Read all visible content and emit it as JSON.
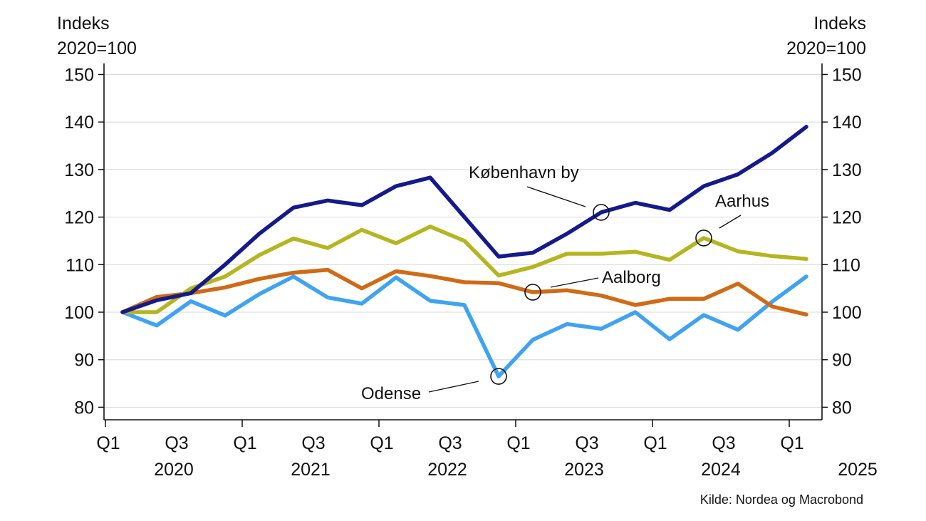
{
  "chart_data": {
    "type": "line",
    "ylabel_left": [
      "Indeks",
      "2020=100"
    ],
    "ylabel_right": [
      "Indeks",
      "2020=100"
    ],
    "ylim": [
      77,
      152
    ],
    "yticks": [
      80,
      90,
      100,
      110,
      120,
      130,
      140,
      150
    ],
    "x_tick_labels": [
      "Q1",
      "Q3",
      "Q1",
      "Q3",
      "Q1",
      "Q3",
      "Q1",
      "Q3",
      "Q1",
      "Q3",
      "Q1"
    ],
    "year_labels": [
      "2020",
      "2021",
      "2022",
      "2023",
      "2024",
      "2025"
    ],
    "x": [
      "2020Q1",
      "2020Q2",
      "2020Q3",
      "2020Q4",
      "2021Q1",
      "2021Q2",
      "2021Q3",
      "2021Q4",
      "2022Q1",
      "2022Q2",
      "2022Q3",
      "2022Q4",
      "2023Q1",
      "2023Q2",
      "2023Q3",
      "2023Q4",
      "2024Q1",
      "2024Q2",
      "2024Q3",
      "2024Q4",
      "2025Q1"
    ],
    "series": [
      {
        "name": "København by",
        "color": "#141a8c",
        "values": [
          100,
          102.5,
          104,
          110,
          116.5,
          122,
          123.5,
          122.5,
          126.5,
          128.3,
          120,
          111.7,
          112.5,
          116.5,
          121,
          123,
          121.5,
          126.5,
          129,
          133.5,
          139
        ]
      },
      {
        "name": "Aarhus",
        "color": "#b5b520",
        "values": [
          100,
          100,
          105,
          107.5,
          112,
          115.5,
          113.5,
          117.3,
          114.5,
          118,
          115,
          107.7,
          109.5,
          112.3,
          112.3,
          112.7,
          111,
          115.6,
          112.8,
          111.8,
          111.2
        ]
      },
      {
        "name": "Aalborg",
        "color": "#d06a15",
        "values": [
          100,
          103.2,
          104,
          105.2,
          107,
          108.3,
          108.9,
          105,
          108.6,
          107.6,
          106.3,
          106.1,
          104.2,
          104.6,
          103.5,
          101.5,
          102.8,
          102.8,
          106,
          101.2,
          99.5
        ]
      },
      {
        "name": "Odense",
        "color": "#3ea3f2",
        "values": [
          100,
          97.2,
          102.3,
          99.3,
          103.8,
          107.5,
          103.1,
          101.8,
          107.3,
          102.4,
          101.5,
          86.5,
          94.2,
          97.5,
          96.5,
          100,
          94.3,
          99.4,
          96.3,
          102.2,
          107.5
        ]
      }
    ],
    "annotations": [
      {
        "label": "København by",
        "series": "København by",
        "index": 14
      },
      {
        "label": "Aarhus",
        "series": "Aarhus",
        "index": 17
      },
      {
        "label": "Aalborg",
        "series": "Aalborg",
        "index": 12
      },
      {
        "label": "Odense",
        "series": "Odense",
        "index": 11
      }
    ],
    "source": "Kilde: Nordea og Macrobond"
  }
}
